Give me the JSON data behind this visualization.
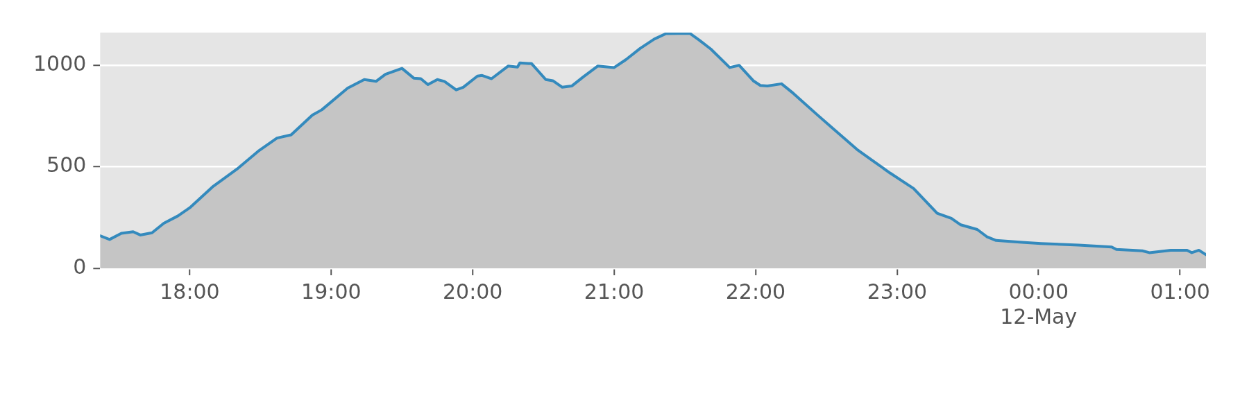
{
  "chart_data": {
    "type": "area",
    "x": [
      "--05-11T17:22",
      "--05-11T17:26",
      "--05-11T17:31",
      "--05-11T17:36",
      "--05-11T17:39",
      "--05-11T17:44",
      "--05-11T17:49",
      "--05-11T17:55",
      "--05-11T18:00",
      "--05-11T18:10",
      "--05-11T18:20",
      "--05-11T18:29",
      "--05-11T18:37",
      "--05-11T18:43",
      "--05-11T18:52",
      "--05-11T18:56",
      "--05-11T19:07",
      "--05-11T19:14",
      "--05-11T19:19",
      "--05-11T19:23",
      "--05-11T19:30",
      "--05-11T19:35",
      "--05-11T19:38",
      "--05-11T19:41",
      "--05-11T19:45",
      "--05-11T19:48",
      "--05-11T19:53",
      "--05-11T19:56",
      "--05-11T20:02",
      "--05-11T20:04",
      "--05-11T20:08",
      "--05-11T20:15",
      "--05-11T20:19",
      "--05-11T20:20",
      "--05-11T20:25",
      "--05-11T20:31",
      "--05-11T20:34",
      "--05-11T20:38",
      "--05-11T20:42",
      "--05-11T20:47",
      "--05-11T20:53",
      "--05-11T21:00",
      "--05-11T21:05",
      "--05-11T21:11",
      "--05-11T21:17",
      "--05-11T21:22",
      "--05-11T21:32",
      "--05-11T21:36",
      "--05-11T21:41",
      "--05-11T21:49",
      "--05-11T21:53",
      "--05-11T21:59",
      "--05-11T22:02",
      "--05-11T22:05",
      "--05-11T22:11",
      "--05-11T22:16",
      "--05-11T22:26",
      "--05-11T22:32",
      "--05-11T22:43",
      "--05-11T22:50",
      "--05-11T22:57",
      "--05-11T23:07",
      "--05-11T23:17",
      "--05-11T23:23",
      "--05-11T23:27",
      "--05-11T23:34",
      "--05-11T23:38",
      "--05-11T23:42",
      "--05-11T23:53",
      "--05-12T00:01",
      "--05-12T00:17",
      "--05-12T00:31",
      "--05-12T00:33",
      "--05-12T00:44",
      "--05-12T00:47",
      "--05-12T00:56",
      "--05-12T01:03",
      "--05-12T01:05",
      "--05-12T01:08",
      "--05-12T01:11"
    ],
    "series": [
      {
        "color": "#348abd",
        "values": [
          160,
          142,
          172,
          180,
          164,
          175,
          222,
          258,
          298,
          404,
          488,
          576,
          641,
          657,
          754,
          780,
          887,
          929,
          920,
          955,
          984,
          936,
          933,
          904,
          929,
          920,
          878,
          891,
          946,
          949,
          933,
          995,
          990,
          1011,
          1007,
          929,
          923,
          891,
          897,
          943,
          995,
          988,
          1027,
          1082,
          1128,
          1155,
          1157,
          1124,
          1079,
          988,
          999,
          923,
          900,
          897,
          908,
          861,
          757,
          696,
          585,
          527,
          469,
          393,
          271,
          246,
          214,
          191,
          156,
          137,
          128,
          122,
          114,
          105,
          93,
          86,
          77,
          89,
          89,
          77,
          89,
          67
        ]
      }
    ],
    "xlim": [
      "--05-11T17:22",
      "--05-12T01:11"
    ],
    "xticks": [
      {
        "value": "--05-11T18:00",
        "label": "18:00"
      },
      {
        "value": "--05-11T19:00",
        "label": "19:00"
      },
      {
        "value": "--05-11T20:00",
        "label": "20:00"
      },
      {
        "value": "--05-11T21:00",
        "label": "21:00"
      },
      {
        "value": "--05-11T22:00",
        "label": "22:00"
      },
      {
        "value": "--05-11T23:00",
        "label": "23:00"
      },
      {
        "value": "--05-12T00:00",
        "label": "00:00\n12-May"
      },
      {
        "value": "--05-12T01:00",
        "label": "01:00"
      }
    ],
    "ylim": [
      0,
      1160
    ],
    "yticks": [
      0,
      500,
      1000
    ],
    "grid": "y",
    "legend": false
  }
}
